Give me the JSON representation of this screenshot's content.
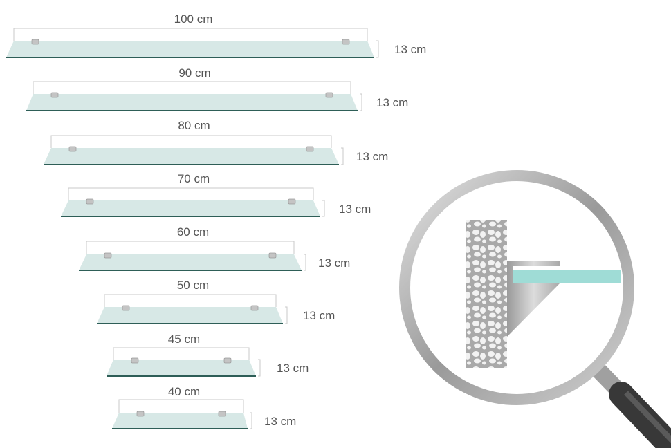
{
  "shelves": [
    {
      "width_label": "100 cm",
      "depth_label": "13 cm"
    },
    {
      "width_label": "90 cm",
      "depth_label": "13 cm"
    },
    {
      "width_label": "80 cm",
      "depth_label": "13 cm"
    },
    {
      "width_label": "70 cm",
      "depth_label": "13 cm"
    },
    {
      "width_label": "60 cm",
      "depth_label": "13 cm"
    },
    {
      "width_label": "50 cm",
      "depth_label": "13 cm"
    },
    {
      "width_label": "45 cm",
      "depth_label": "13 cm"
    },
    {
      "width_label": "40 cm",
      "depth_label": "13 cm"
    }
  ],
  "colors": {
    "glass": "#d7e8e6",
    "glass_edge": "#2e5e57",
    "glass_detail": "#9fdcd6",
    "text": "#555555",
    "metal": "#b5b5b5",
    "handle": "#3a3a3a"
  },
  "detail_view": {
    "icon": "magnifier-icon",
    "content": "wall-mounted glass shelf bracket"
  }
}
